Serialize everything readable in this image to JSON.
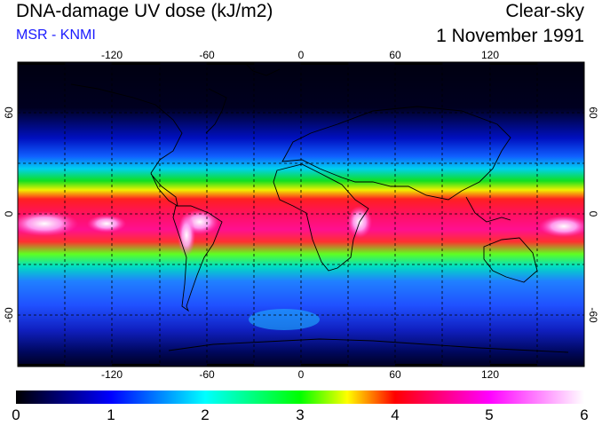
{
  "header": {
    "title": "DNA-damage UV dose (kJ/m2)",
    "subtitle": "MSR - KNMI",
    "condition": "Clear-sky",
    "date": "1 November 1991"
  },
  "map": {
    "projection": "equirectangular",
    "lon_range": [
      -180,
      180
    ],
    "lat_range": [
      -90,
      90
    ],
    "lon_ticks": [
      "-120",
      "-60",
      "0",
      "60",
      "120"
    ],
    "lat_ticks": [
      "60",
      "0",
      "-60"
    ],
    "gridlines": "dashed, every 30 degrees"
  },
  "colorbar": {
    "min": 0,
    "max": 6,
    "labels": [
      "0",
      "1",
      "2",
      "3",
      "4",
      "5",
      "6"
    ],
    "colors": [
      "#000000",
      "#0000ff",
      "#00ffff",
      "#00ff00",
      "#ffff00",
      "#ff0000",
      "#ff00ff",
      "#ffffff"
    ]
  }
}
